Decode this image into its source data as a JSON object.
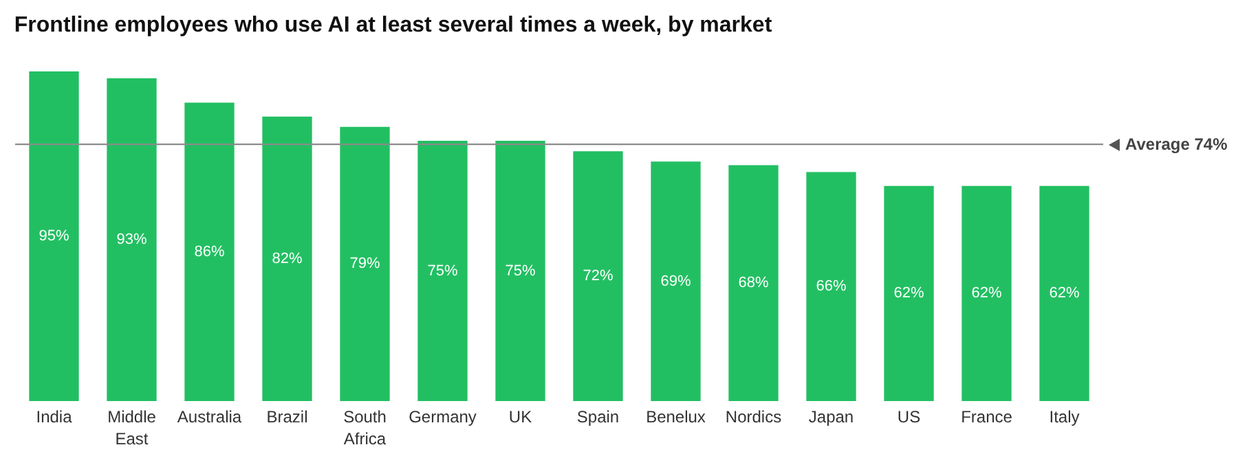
{
  "chart_data": {
    "type": "bar",
    "title": "Frontline employees who use AI at least several times a week, by market",
    "categories": [
      "India",
      "Middle East",
      "Australia",
      "Brazil",
      "South Africa",
      "Germany",
      "UK",
      "Spain",
      "Benelux",
      "Nordics",
      "Japan",
      "US",
      "France",
      "Italy"
    ],
    "values": [
      95,
      93,
      86,
      82,
      79,
      75,
      75,
      72,
      69,
      68,
      66,
      62,
      62,
      62
    ],
    "value_labels": [
      "95%",
      "93%",
      "86%",
      "82%",
      "79%",
      "75%",
      "75%",
      "72%",
      "69%",
      "68%",
      "66%",
      "62%",
      "62%",
      "62%"
    ],
    "color": "#22bf62",
    "ref_lines": [
      {
        "axis": "y",
        "value": 74,
        "label": "Average 74%",
        "color": "#8c8c8c"
      }
    ]
  }
}
